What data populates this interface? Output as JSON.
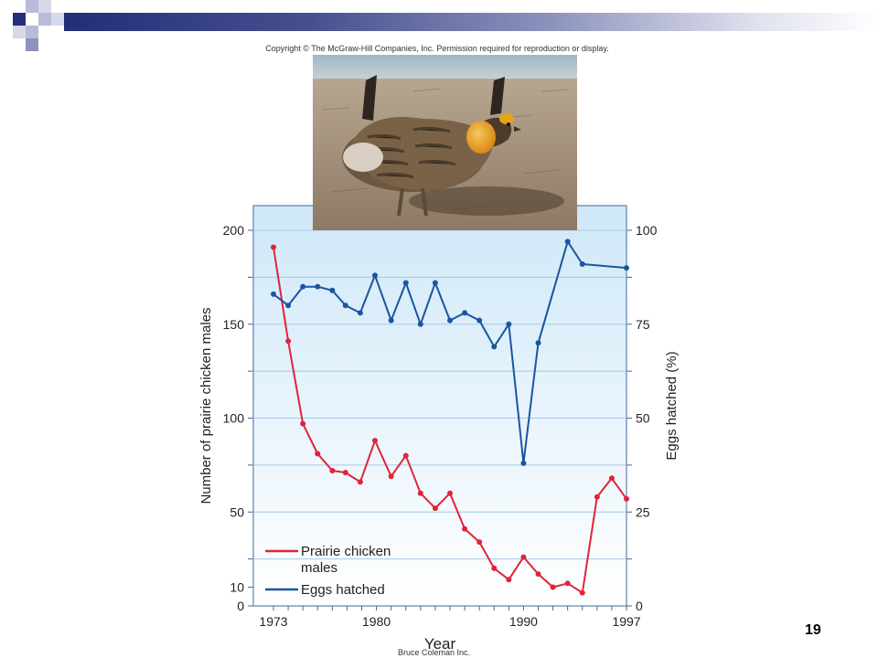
{
  "header": {
    "copyright": "Copyright © The McGraw-Hill Companies, Inc. Permission required for reproduction or display."
  },
  "photo": {
    "subject": "prairie chicken male",
    "credit": "Bruce Coleman Inc."
  },
  "slide_number": "19",
  "colors": {
    "accent_dark": "#232e78",
    "accent_light": "#8d93bd",
    "males_series": "#e0243a",
    "eggs_series": "#1a55a0",
    "plot_bg_top": "#cfe8f8",
    "plot_bg_bottom": "#ffffff"
  },
  "chart_data": {
    "type": "line",
    "xlabel": "Year",
    "ylabel_left": "Number of prairie chicken males",
    "ylabel_right": "Eggs hatched (%)",
    "x_ticks": [
      "1973",
      "1980",
      "1990",
      "1997"
    ],
    "y_left_ticks": [
      "0",
      "10",
      "50",
      "100",
      "150",
      "200"
    ],
    "y_right_ticks": [
      "0",
      "25",
      "50",
      "75",
      "100"
    ],
    "xlim": [
      1973,
      1997
    ],
    "ylim_left": [
      0,
      200
    ],
    "ylim_right": [
      0,
      100
    ],
    "grid": true,
    "legend_position": "bottom-left",
    "series": [
      {
        "name": "Prairie chicken males",
        "legend_lines": [
          "Prairie chicken",
          "males"
        ],
        "axis": "left",
        "color": "#e0243a",
        "points": [
          [
            1973.0,
            191
          ],
          [
            1974.0,
            141
          ],
          [
            1975.0,
            97
          ],
          [
            1976.0,
            81
          ],
          [
            1977.0,
            72
          ],
          [
            1977.9,
            71
          ],
          [
            1978.9,
            66
          ],
          [
            1979.9,
            88
          ],
          [
            1981.0,
            69
          ],
          [
            1982.0,
            80
          ],
          [
            1983.0,
            60
          ],
          [
            1984.0,
            52
          ],
          [
            1985.0,
            60
          ],
          [
            1986.0,
            41
          ],
          [
            1987.0,
            34
          ],
          [
            1988.0,
            20
          ],
          [
            1989.0,
            14
          ],
          [
            1990.0,
            26
          ],
          [
            1991.0,
            17
          ],
          [
            1992.0,
            10
          ],
          [
            1993.0,
            12
          ],
          [
            1994.0,
            7
          ],
          [
            1995.0,
            58
          ],
          [
            1996.0,
            68
          ],
          [
            1997.0,
            57
          ]
        ]
      },
      {
        "name": "Eggs hatched",
        "legend_lines": [
          "Eggs hatched"
        ],
        "axis": "right",
        "color": "#1a55a0",
        "points": [
          [
            1973.0,
            83
          ],
          [
            1974.0,
            80
          ],
          [
            1975.0,
            85
          ],
          [
            1976.0,
            85
          ],
          [
            1977.0,
            84
          ],
          [
            1977.9,
            80
          ],
          [
            1978.9,
            78
          ],
          [
            1979.9,
            88
          ],
          [
            1981.0,
            76
          ],
          [
            1982.0,
            86
          ],
          [
            1983.0,
            75
          ],
          [
            1984.0,
            86
          ],
          [
            1985.0,
            76
          ],
          [
            1986.0,
            78
          ],
          [
            1987.0,
            76
          ],
          [
            1988.0,
            69
          ],
          [
            1989.0,
            75
          ],
          [
            1990.0,
            38
          ],
          [
            1991.0,
            70
          ],
          [
            1993.0,
            97
          ],
          [
            1994.0,
            91
          ],
          [
            1997.0,
            90
          ]
        ]
      }
    ]
  }
}
